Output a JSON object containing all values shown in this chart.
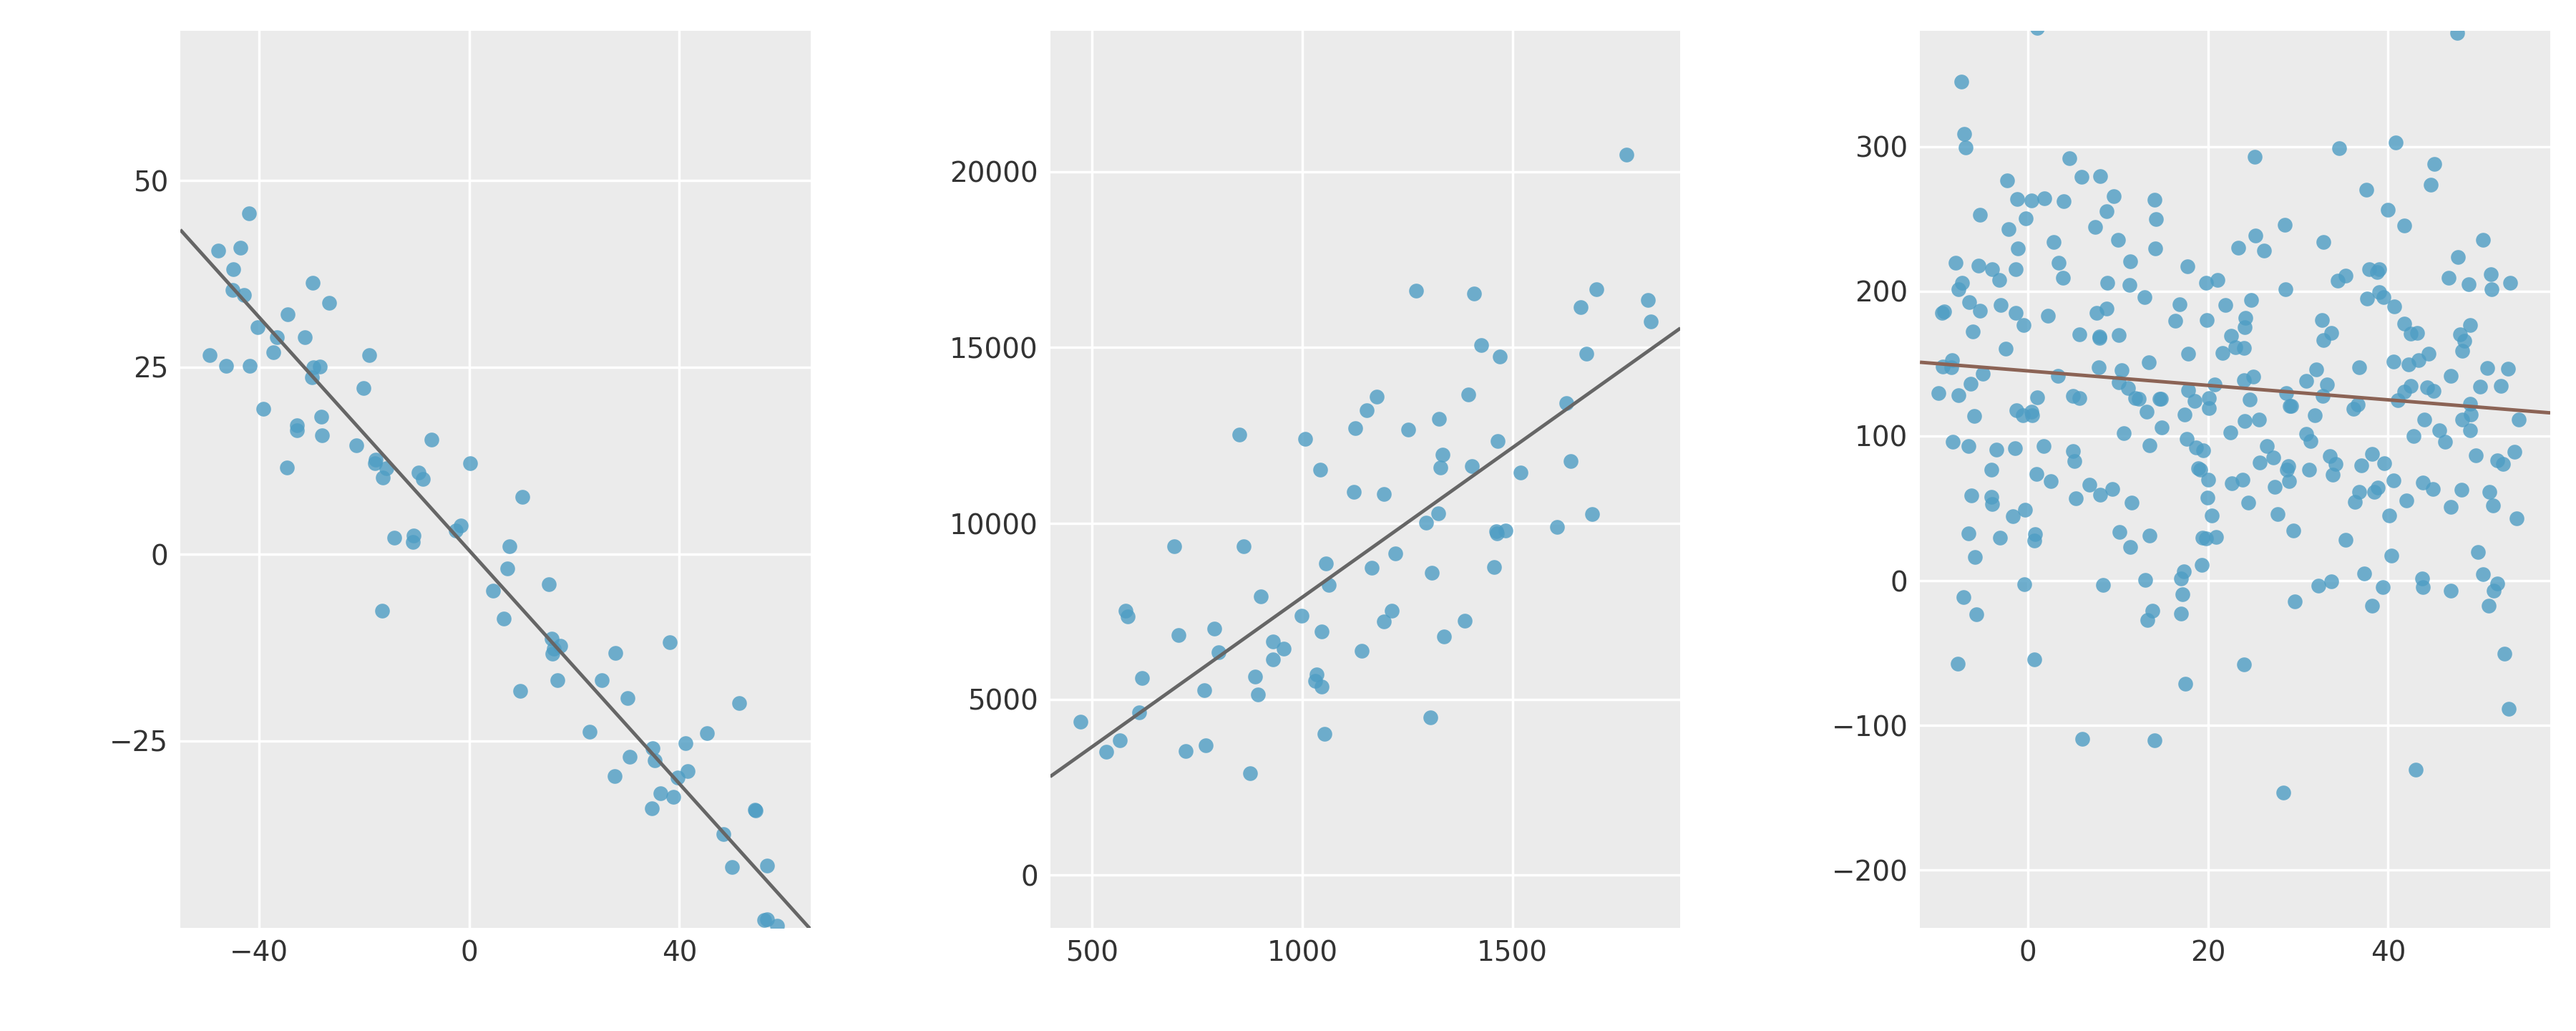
{
  "plot1": {
    "xlim": [
      -55,
      65
    ],
    "ylim": [
      -50,
      70
    ],
    "xticks": [
      -40,
      0,
      40
    ],
    "yticks": [
      -25,
      0,
      25,
      50
    ],
    "line_slope": -0.78,
    "line_intercept": 0.5,
    "line_color": "#666666",
    "seed": 42,
    "n": 80,
    "x_range": [
      -50,
      60
    ],
    "noise_std": 8
  },
  "plot2": {
    "xlim": [
      400,
      1900
    ],
    "ylim": [
      -1500,
      24000
    ],
    "xticks": [
      500,
      1000,
      1500
    ],
    "yticks": [
      0,
      5000,
      10000,
      15000,
      20000
    ],
    "line_slope": 8.5,
    "line_intercept": -600,
    "line_color": "#666666",
    "seed": 123,
    "n": 75,
    "x_range": [
      450,
      1850
    ],
    "noise_std": 2800
  },
  "plot3": {
    "xlim": [
      -12,
      58
    ],
    "ylim": [
      -240,
      380
    ],
    "xticks": [
      0,
      20,
      40
    ],
    "yticks": [
      -200,
      -100,
      0,
      100,
      200,
      300
    ],
    "line_slope": -0.5,
    "line_intercept": 145,
    "line_color": "#8B6355",
    "seed": 7,
    "n": 300,
    "x_range": [
      -10,
      55
    ],
    "noise_std": 90
  },
  "background_color": "#EBEBEB",
  "grid_color": "#FFFFFF",
  "tick_fontsize": 28,
  "dot_color": "#4E9DC4",
  "dot_size": 220,
  "dot_alpha": 0.8,
  "line_width": 3.5
}
